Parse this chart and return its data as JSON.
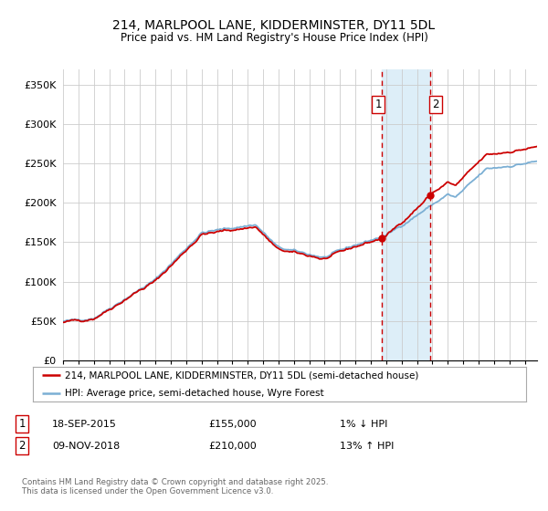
{
  "title": "214, MARLPOOL LANE, KIDDERMINSTER, DY11 5DL",
  "subtitle": "Price paid vs. HM Land Registry's House Price Index (HPI)",
  "ylabel_ticks": [
    "£0",
    "£50K",
    "£100K",
    "£150K",
    "£200K",
    "£250K",
    "£300K",
    "£350K"
  ],
  "ytick_values": [
    0,
    50000,
    100000,
    150000,
    200000,
    250000,
    300000,
    350000
  ],
  "ylim": [
    0,
    370000
  ],
  "xlim_start": 1995.0,
  "xlim_end": 2025.8,
  "sale1_date": 2015.72,
  "sale1_price": 155000,
  "sale1_label": "1",
  "sale2_date": 2018.86,
  "sale2_price": 210000,
  "sale2_label": "2",
  "hpi_color": "#7bafd4",
  "price_color": "#cc0000",
  "shade_color": "#ddeef8",
  "dashed_color": "#cc0000",
  "legend_line1": "214, MARLPOOL LANE, KIDDERMINSTER, DY11 5DL (semi-detached house)",
  "legend_line2": "HPI: Average price, semi-detached house, Wyre Forest",
  "footnote": "Contains HM Land Registry data © Crown copyright and database right 2025.\nThis data is licensed under the Open Government Licence v3.0.",
  "background_color": "#ffffff",
  "grid_color": "#cccccc"
}
